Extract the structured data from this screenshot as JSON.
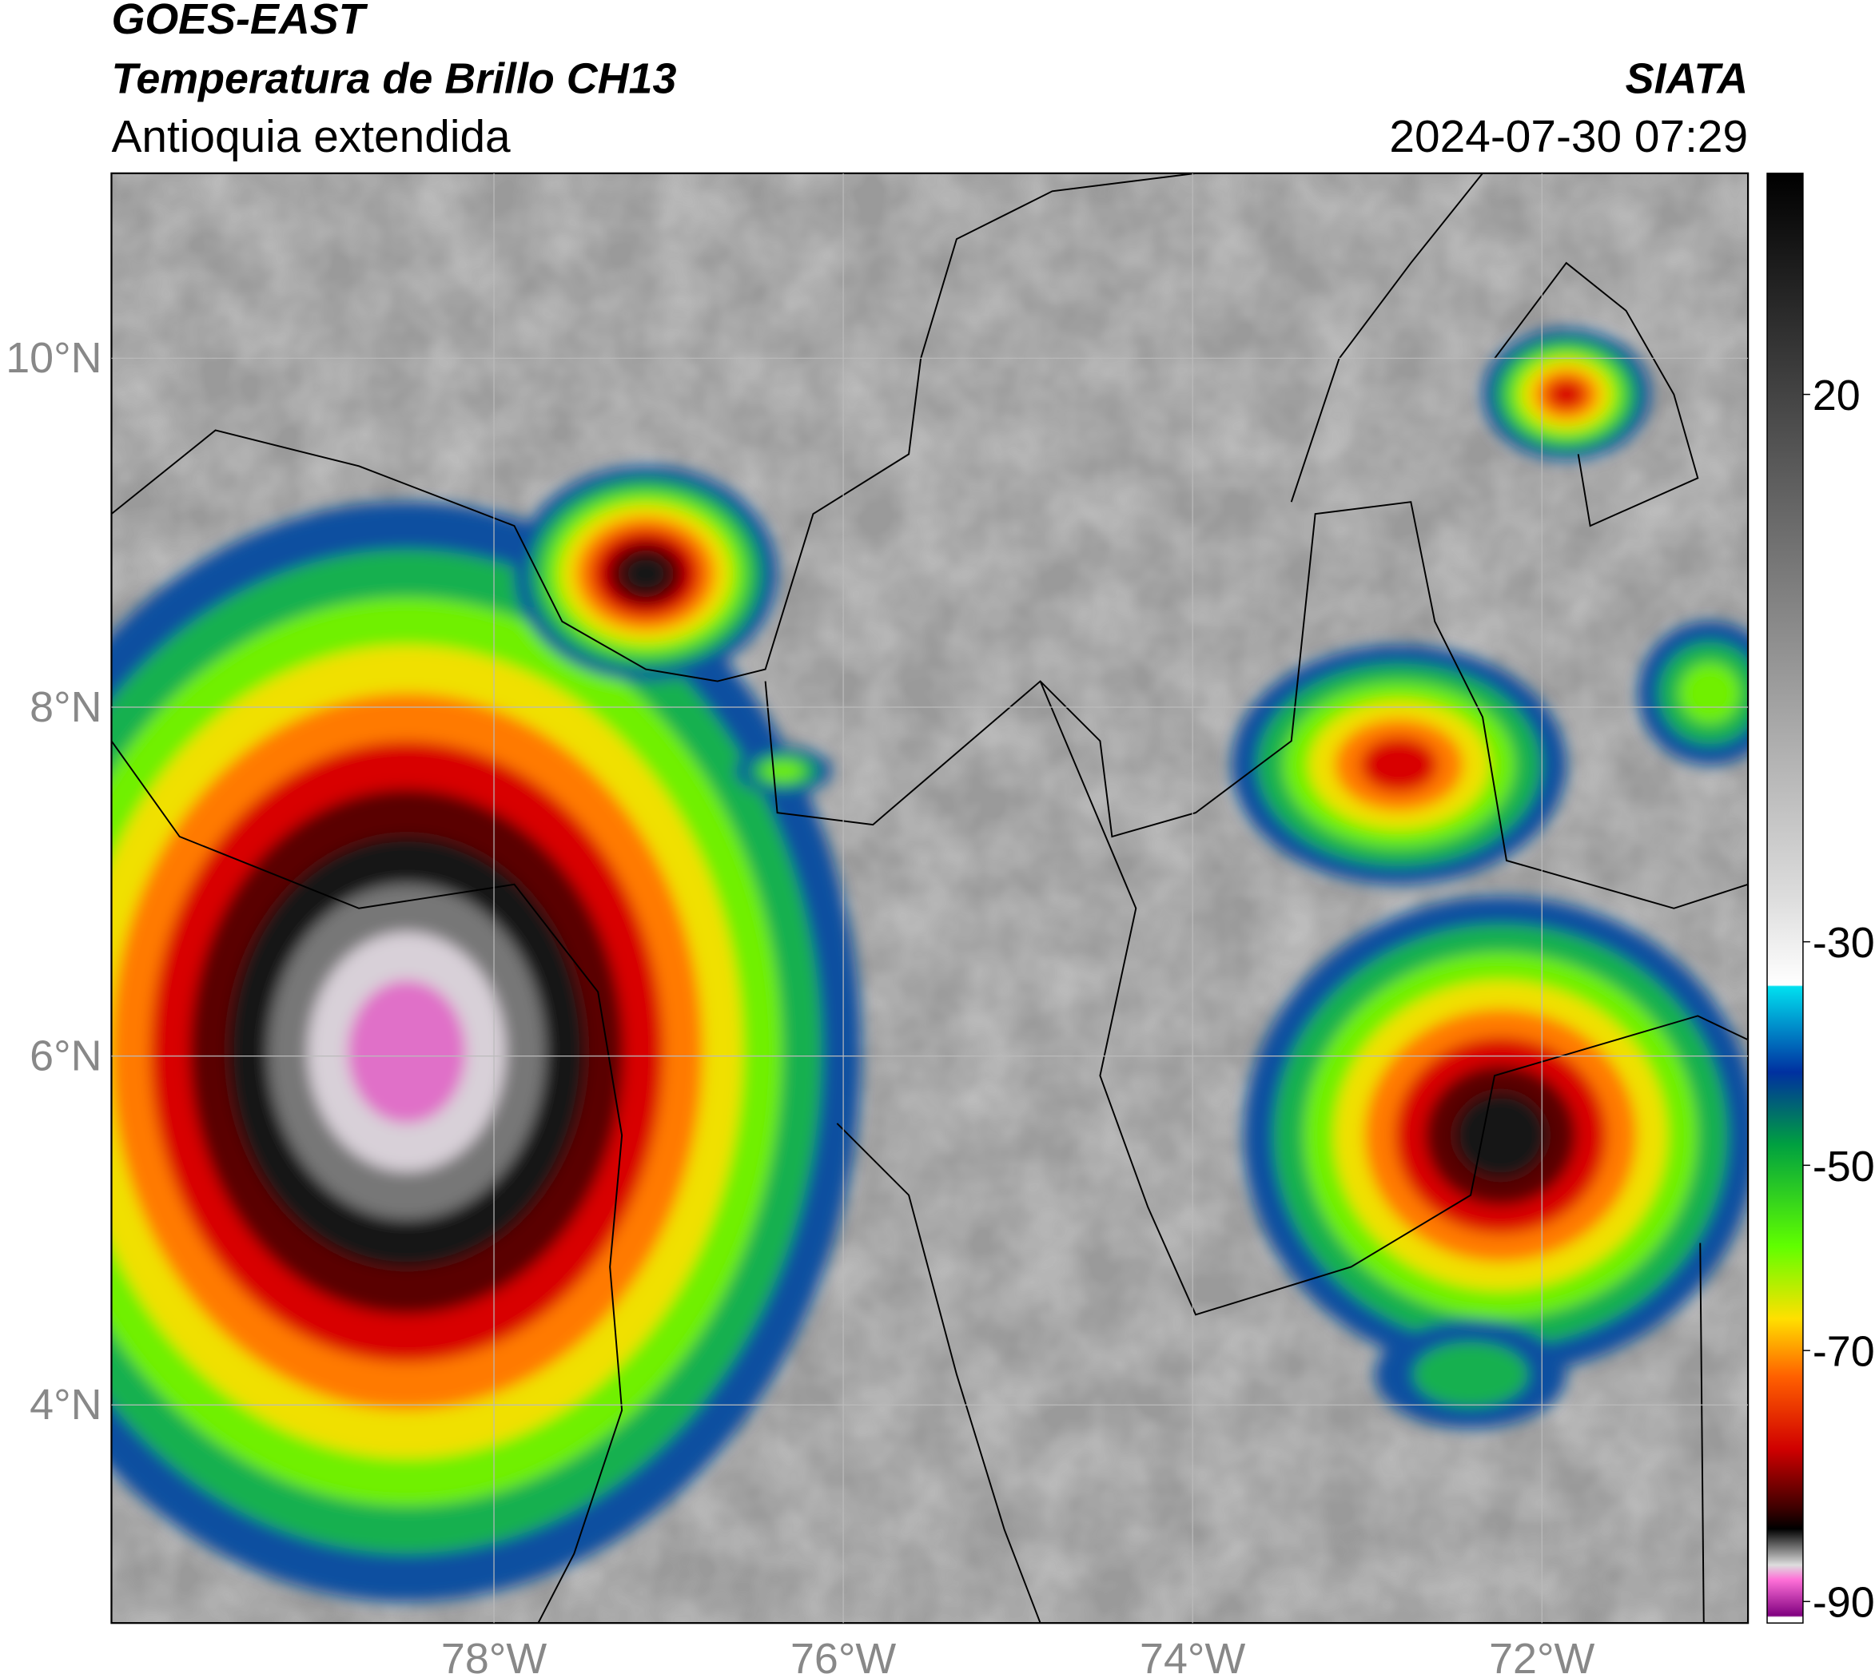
{
  "header": {
    "title": "GOES-EAST",
    "subtitle": "Temperatura de Brillo CH13",
    "region": "Antioquia extendida",
    "source": "SIATA",
    "datetime": "2024-07-30 07:29"
  },
  "map": {
    "xlim": [
      -80.19,
      -70.82
    ],
    "ylim": [
      2.75,
      11.06
    ],
    "xticks": [
      {
        "value": -78,
        "label": "78°W"
      },
      {
        "value": -76,
        "label": "76°W"
      },
      {
        "value": -74,
        "label": "74°W"
      },
      {
        "value": -72,
        "label": "72°W"
      }
    ],
    "yticks": [
      {
        "value": 10,
        "label": "10°N"
      },
      {
        "value": 8,
        "label": "8°N"
      },
      {
        "value": 6,
        "label": "6°N"
      },
      {
        "value": 4,
        "label": "4°N"
      }
    ],
    "grid": true
  },
  "colorbar": {
    "ticks": [
      20,
      -30,
      -50,
      -70,
      -90
    ]
  }
}
